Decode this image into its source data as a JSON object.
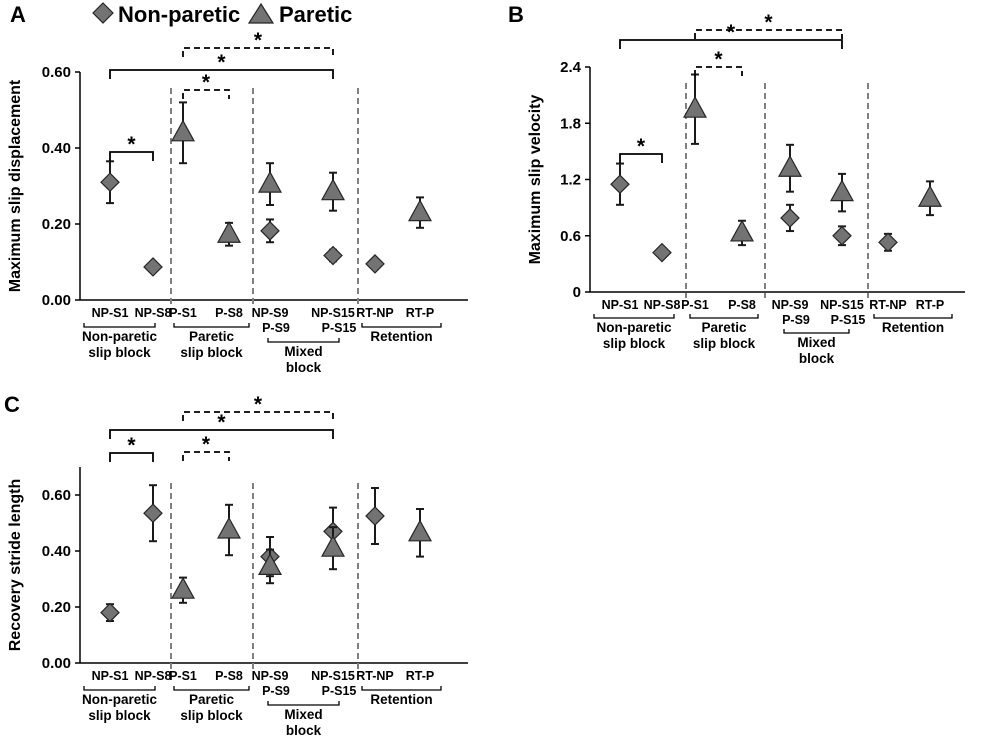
{
  "legend": {
    "non_paretic": "Non-paretic",
    "paretic": "Paretic"
  },
  "colors": {
    "marker_fill": "#737373",
    "marker_stroke": "#262626",
    "axis": "#000000",
    "divider": "#808080"
  },
  "chart_data": [
    {
      "panel": "A",
      "type": "scatter",
      "ylabel": "Maximum slip displacement",
      "ylim": [
        0,
        0.6
      ],
      "yticks": [
        "0.00",
        "0.20",
        "0.40",
        "0.60"
      ],
      "ytick_values": [
        0,
        0.2,
        0.4,
        0.6
      ],
      "x_positions": [
        1,
        2,
        3,
        4,
        5,
        6,
        7,
        8
      ],
      "xtick_labels": [
        "NP-S1",
        "NP-S8",
        "P-S1",
        "P-S8",
        "NP-S9\nP-S9",
        "NP-S15\nP-S15",
        "RT-NP",
        "RT-P"
      ],
      "group_labels": [
        "Non-paretic\nslip block",
        "Paretic\nslip block",
        "Mixed\nblock",
        "Retention"
      ],
      "series": [
        {
          "name": "Non-paretic",
          "marker": "diamond",
          "points": [
            {
              "x": 1,
              "y": 0.31,
              "err": 0.055
            },
            {
              "x": 2,
              "y": 0.087,
              "err": 0.008
            },
            {
              "x": 5,
              "y": 0.182,
              "err": 0.03
            },
            {
              "x": 6,
              "y": 0.117,
              "err": 0.015
            },
            {
              "x": 7,
              "y": 0.095,
              "err": 0.008
            }
          ]
        },
        {
          "name": "Paretic",
          "marker": "triangle",
          "points": [
            {
              "x": 3,
              "y": 0.44,
              "err": 0.08
            },
            {
              "x": 4,
              "y": 0.173,
              "err": 0.03
            },
            {
              "x": 5,
              "y": 0.305,
              "err": 0.055
            },
            {
              "x": 6,
              "y": 0.285,
              "err": 0.05
            },
            {
              "x": 8,
              "y": 0.23,
              "err": 0.04
            }
          ]
        }
      ],
      "significance": [
        {
          "from": 1,
          "to": 2,
          "style": "solid",
          "label": "*"
        },
        {
          "from": 3,
          "to": 4,
          "style": "dashed",
          "label": "*"
        },
        {
          "from": 1,
          "to": 6,
          "style": "solid",
          "label": "*"
        },
        {
          "from": 3,
          "to": 6,
          "style": "dashed",
          "label": "*"
        }
      ]
    },
    {
      "panel": "B",
      "type": "scatter",
      "ylabel": "Maximum slip velocity",
      "ylim": [
        0,
        2.4
      ],
      "yticks": [
        "0",
        "0.6",
        "1.2",
        "1.8",
        "2.4"
      ],
      "ytick_values": [
        0,
        0.6,
        1.2,
        1.8,
        2.4
      ],
      "x_positions": [
        1,
        2,
        3,
        4,
        5,
        6,
        7,
        8
      ],
      "xtick_labels": [
        "NP-S1",
        "NP-S8",
        "P-S1",
        "P-S8",
        "NP-S9\nP-S9",
        "NP-S15\nP-S15",
        "RT-NP",
        "RT-P"
      ],
      "group_labels": [
        "Non-paretic\nslip block",
        "Paretic\nslip block",
        "Mixed\nblock",
        "Retention"
      ],
      "series": [
        {
          "name": "Non-paretic",
          "marker": "diamond",
          "points": [
            {
              "x": 1,
              "y": 1.15,
              "err": 0.22
            },
            {
              "x": 2,
              "y": 0.42,
              "err": 0.04
            },
            {
              "x": 5,
              "y": 0.79,
              "err": 0.14
            },
            {
              "x": 6,
              "y": 0.6,
              "err": 0.1
            },
            {
              "x": 7,
              "y": 0.53,
              "err": 0.09
            }
          ]
        },
        {
          "name": "Paretic",
          "marker": "triangle",
          "points": [
            {
              "x": 3,
              "y": 1.95,
              "err": 0.37
            },
            {
              "x": 4,
              "y": 0.63,
              "err": 0.13
            },
            {
              "x": 5,
              "y": 1.32,
              "err": 0.25
            },
            {
              "x": 6,
              "y": 1.06,
              "err": 0.2
            },
            {
              "x": 8,
              "y": 1.0,
              "err": 0.18
            }
          ]
        }
      ],
      "significance": [
        {
          "from": 1,
          "to": 2,
          "style": "solid",
          "label": "*"
        },
        {
          "from": 3,
          "to": 4,
          "style": "dashed",
          "label": "*"
        },
        {
          "from": 1,
          "to": 6,
          "style": "solid",
          "label": "*"
        },
        {
          "from": 3,
          "to": 6,
          "style": "dashed",
          "label": "*"
        }
      ]
    },
    {
      "panel": "C",
      "type": "scatter",
      "ylabel": "Recovery stride length",
      "ylim": [
        0,
        0.7
      ],
      "yticks": [
        "0.00",
        "0.20",
        "0.40",
        "0.60"
      ],
      "ytick_values": [
        0,
        0.2,
        0.4,
        0.6
      ],
      "x_positions": [
        1,
        2,
        3,
        4,
        5,
        6,
        7,
        8
      ],
      "xtick_labels": [
        "NP-S1",
        "NP-S8",
        "P-S1",
        "P-S8",
        "NP-S9\nP-S9",
        "NP-S15\nP-S15",
        "RT-NP",
        "RT-P"
      ],
      "group_labels": [
        "Non-paretic\nslip block",
        "Paretic\nslip block",
        "Mixed\nblock",
        "Retention"
      ],
      "series": [
        {
          "name": "Non-paretic",
          "marker": "diamond",
          "points": [
            {
              "x": 1,
              "y": 0.18,
              "err": 0.03
            },
            {
              "x": 2,
              "y": 0.535,
              "err": 0.1
            },
            {
              "x": 5,
              "y": 0.38,
              "err": 0.07
            },
            {
              "x": 6,
              "y": 0.47,
              "err": 0.085
            },
            {
              "x": 7,
              "y": 0.525,
              "err": 0.1
            }
          ]
        },
        {
          "name": "Paretic",
          "marker": "triangle",
          "points": [
            {
              "x": 3,
              "y": 0.26,
              "err": 0.045
            },
            {
              "x": 4,
              "y": 0.475,
              "err": 0.09
            },
            {
              "x": 5,
              "y": 0.345,
              "err": 0.06
            },
            {
              "x": 6,
              "y": 0.41,
              "err": 0.075
            },
            {
              "x": 8,
              "y": 0.465,
              "err": 0.085
            }
          ]
        }
      ],
      "significance": [
        {
          "from": 1,
          "to": 2,
          "style": "solid",
          "label": "*"
        },
        {
          "from": 3,
          "to": 4,
          "style": "dashed",
          "label": "*"
        },
        {
          "from": 1,
          "to": 6,
          "style": "solid",
          "label": "*"
        },
        {
          "from": 3,
          "to": 6,
          "style": "dashed",
          "label": "*"
        }
      ]
    }
  ]
}
